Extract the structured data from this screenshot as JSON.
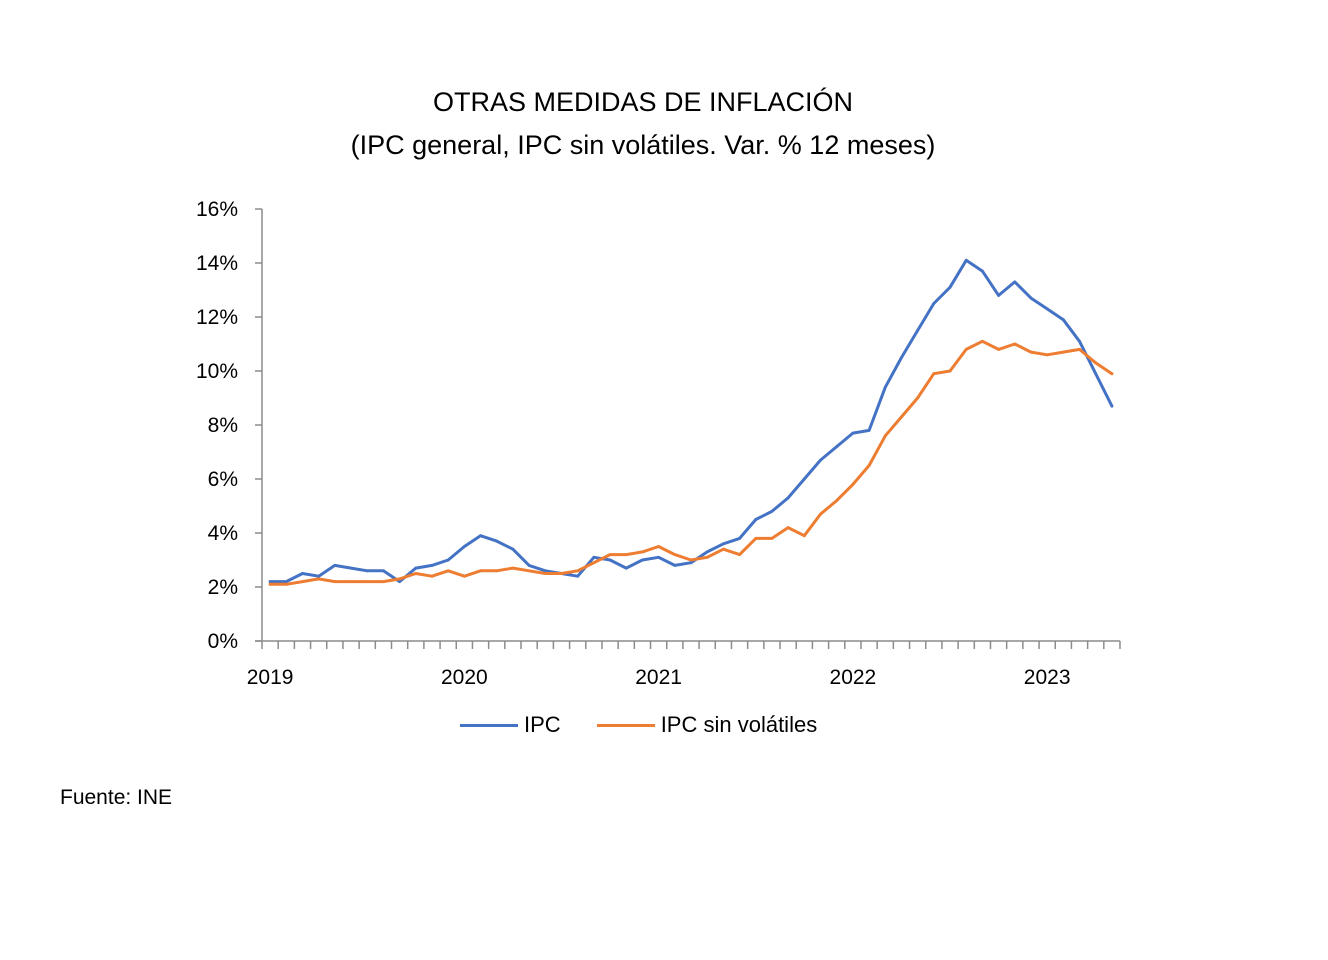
{
  "chart_data": {
    "type": "line",
    "title": "OTRAS MEDIDAS DE INFLACIÓN",
    "subtitle": "(IPC general, IPC sin volátiles.  Var. % 12 meses)",
    "xlabel": "",
    "ylabel": "",
    "x_start": "2019-01",
    "x_end": "2023-05",
    "x_tick_labels": [
      "2019",
      "2020",
      "2021",
      "2022",
      "2023"
    ],
    "y_tick_labels": [
      "0%",
      "2%",
      "4%",
      "6%",
      "8%",
      "10%",
      "12%",
      "14%",
      "16%"
    ],
    "ylim": [
      0,
      16
    ],
    "y_step": 2,
    "grid": false,
    "legend_position": "bottom",
    "series": [
      {
        "name": "IPC",
        "color": "#4472C4",
        "values": [
          2.2,
          2.2,
          2.5,
          2.4,
          2.8,
          2.7,
          2.6,
          2.6,
          2.2,
          2.7,
          2.8,
          3.0,
          3.5,
          3.9,
          3.7,
          3.4,
          2.8,
          2.6,
          2.5,
          2.4,
          3.1,
          3.0,
          2.7,
          3.0,
          3.1,
          2.8,
          2.9,
          3.3,
          3.6,
          3.8,
          4.5,
          4.8,
          5.3,
          6.0,
          6.7,
          7.2,
          7.7,
          7.8,
          9.4,
          10.5,
          11.5,
          12.5,
          13.1,
          14.1,
          13.7,
          12.8,
          13.3,
          12.7,
          12.3,
          11.9,
          11.1,
          9.9,
          8.7
        ]
      },
      {
        "name": "IPC sin volátiles",
        "color": "#ED7D31",
        "values": [
          2.1,
          2.1,
          2.2,
          2.3,
          2.2,
          2.2,
          2.2,
          2.2,
          2.3,
          2.5,
          2.4,
          2.6,
          2.4,
          2.6,
          2.6,
          2.7,
          2.6,
          2.5,
          2.5,
          2.6,
          2.9,
          3.2,
          3.2,
          3.3,
          3.5,
          3.2,
          3.0,
          3.1,
          3.4,
          3.2,
          3.8,
          3.8,
          4.2,
          3.9,
          4.7,
          5.2,
          5.8,
          6.5,
          7.6,
          8.3,
          9.0,
          9.9,
          10.0,
          10.8,
          11.1,
          10.8,
          11.0,
          10.7,
          10.6,
          10.7,
          10.8,
          10.3,
          9.9
        ]
      }
    ]
  },
  "legend": {
    "items": [
      "IPC",
      "IPC sin volátiles"
    ]
  },
  "source": "Fuente: INE",
  "colors": {
    "axis": "#8C8C8C"
  }
}
